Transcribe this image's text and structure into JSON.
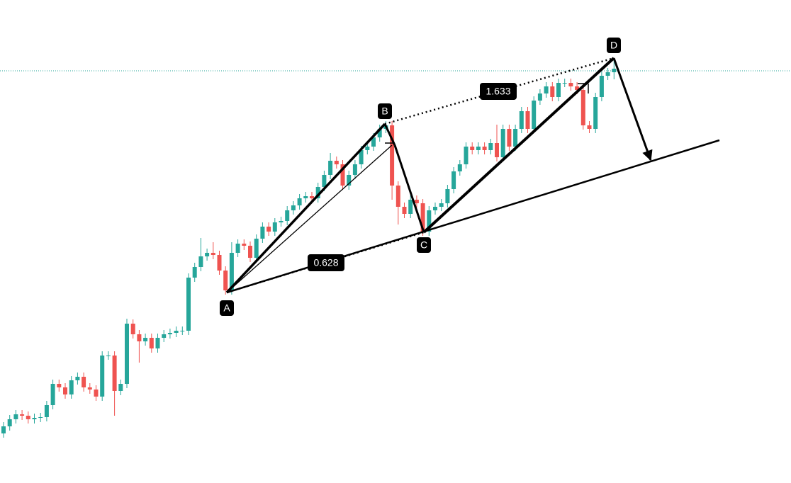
{
  "chart_data": {
    "type": "candlestick",
    "up_color": "#26a69a",
    "down_color": "#ef5350",
    "open": [
      70,
      80,
      90,
      97,
      95,
      90,
      92,
      93,
      110,
      140,
      135,
      125,
      145,
      150,
      135,
      132,
      122,
      180,
      180,
      130,
      140,
      225,
      210,
      200,
      205,
      190,
      205,
      210,
      212,
      215,
      215,
      290,
      305,
      320,
      325,
      322,
      300,
      272,
      325,
      338,
      335,
      318,
      345,
      362,
      355,
      368,
      370,
      385,
      392,
      402,
      405,
      402,
      418,
      435,
      455,
      450,
      420,
      435,
      450,
      470,
      475,
      488,
      500,
      505,
      420,
      390,
      380,
      400,
      395,
      355,
      385,
      390,
      395,
      415,
      440,
      450,
      475,
      470,
      475,
      470,
      480,
      460,
      500,
      475,
      500,
      525,
      500,
      540,
      550,
      560,
      545,
      565,
      565,
      560,
      555,
      505,
      500,
      545,
      575,
      580
    ],
    "high": [
      86,
      96,
      103,
      103,
      101,
      98,
      99,
      116,
      146,
      146,
      141,
      151,
      156,
      156,
      141,
      138,
      186,
      186,
      186,
      146,
      232,
      231,
      216,
      211,
      211,
      211,
      216,
      218,
      221,
      221,
      296,
      311,
      346,
      331,
      340,
      328,
      306,
      340,
      344,
      344,
      341,
      351,
      368,
      368,
      374,
      376,
      391,
      398,
      408,
      411,
      411,
      424,
      441,
      466,
      461,
      456,
      441,
      456,
      476,
      481,
      494,
      506,
      511,
      511,
      426,
      396,
      406,
      406,
      401,
      391,
      396,
      401,
      421,
      446,
      456,
      481,
      481,
      481,
      481,
      486,
      506,
      506,
      506,
      506,
      531,
      531,
      546,
      556,
      566,
      566,
      571,
      571,
      571,
      566,
      561,
      511,
      551,
      581,
      586,
      600
    ],
    "low": [
      64,
      74,
      84,
      89,
      84,
      84,
      86,
      87,
      104,
      129,
      119,
      119,
      139,
      129,
      126,
      116,
      116,
      174,
      95,
      124,
      134,
      204,
      170,
      194,
      184,
      184,
      199,
      204,
      206,
      209,
      209,
      284,
      299,
      314,
      316,
      294,
      266,
      266,
      319,
      329,
      312,
      312,
      339,
      349,
      349,
      362,
      364,
      379,
      386,
      396,
      396,
      396,
      412,
      429,
      444,
      414,
      414,
      429,
      444,
      464,
      469,
      482,
      494,
      400,
      365,
      374,
      374,
      389,
      349,
      349,
      379,
      384,
      389,
      409,
      434,
      444,
      464,
      464,
      464,
      464,
      454,
      454,
      469,
      469,
      494,
      494,
      494,
      534,
      544,
      539,
      539,
      559,
      554,
      549,
      499,
      494,
      494,
      539,
      569,
      570
    ],
    "close": [
      80,
      90,
      97,
      95,
      90,
      92,
      93,
      110,
      140,
      135,
      125,
      145,
      150,
      135,
      132,
      122,
      180,
      180,
      130,
      140,
      225,
      210,
      200,
      205,
      190,
      205,
      210,
      212,
      215,
      215,
      290,
      305,
      320,
      325,
      322,
      300,
      272,
      325,
      338,
      335,
      318,
      345,
      362,
      355,
      368,
      370,
      385,
      392,
      402,
      405,
      402,
      418,
      435,
      455,
      450,
      420,
      435,
      450,
      470,
      475,
      488,
      500,
      505,
      420,
      390,
      380,
      400,
      395,
      355,
      385,
      390,
      395,
      415,
      440,
      450,
      475,
      470,
      475,
      470,
      480,
      460,
      500,
      475,
      500,
      525,
      500,
      540,
      550,
      560,
      545,
      565,
      565,
      560,
      555,
      505,
      500,
      545,
      575,
      580,
      585
    ],
    "price_line": 582,
    "points": [
      {
        "label": "A",
        "value": 269
      },
      {
        "label": "B",
        "value": 507
      },
      {
        "label": "C",
        "value": 354
      },
      {
        "label": "D",
        "value": 600
      }
    ],
    "ratios": [
      0.628,
      1.633
    ]
  }
}
